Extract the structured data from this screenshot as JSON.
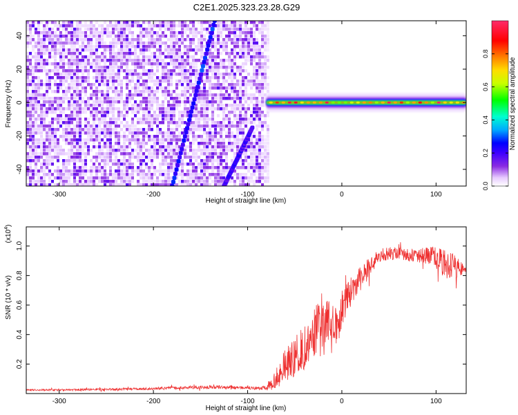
{
  "title": "C2E1.2025.323.23.28.G29",
  "chart_data": [
    {
      "type": "heatmap",
      "xlabel": "Height of straight line (km)",
      "ylabel": "Frequency (Hz)",
      "xlim": [
        -335,
        132
      ],
      "ylim": [
        -50,
        49
      ],
      "xticks": [
        -300,
        -200,
        -100,
        0,
        100
      ],
      "xtick_labels": [
        "-300",
        "-200",
        "-100",
        "0",
        "100"
      ],
      "yticks": [
        -40,
        -20,
        0,
        20,
        40
      ],
      "ytick_labels": [
        "-40",
        "-20",
        "0",
        "20",
        "40"
      ],
      "noise_region_x": [
        -335,
        -78
      ],
      "signal_band": {
        "x": [
          -80,
          132
        ],
        "frequency_hz": 0
      },
      "streaks": [
        {
          "x0": -180,
          "f0": -50,
          "x1": -135,
          "f1": 49,
          "intensity": 0.32
        },
        {
          "x0": -125,
          "f0": -50,
          "x1": -95,
          "f1": -15,
          "intensity": 0.25
        }
      ],
      "colorbar": {
        "label": "Normalized spectral amplitude",
        "range": [
          0,
          1
        ],
        "ticks": [
          0.0,
          0.2,
          0.4,
          0.6,
          0.8
        ],
        "tick_labels": [
          "0.0",
          "0.2",
          "0.4",
          "0.6",
          "0.8"
        ],
        "colormap": [
          "#ffffff",
          "#e8ccff",
          "#8a2be2",
          "#3f00ff",
          "#0000ff",
          "#00aaff",
          "#00ffd0",
          "#00ff00",
          "#c8ff00",
          "#ffdd00",
          "#ff8000",
          "#ff0000",
          "#ff2a6a"
        ]
      }
    },
    {
      "type": "line",
      "xlabel": "Height of straight line (km)",
      "ylabel": "SNR (10 * v/v)",
      "y_multiplier": "(x10",
      "y_multiplier_exp": "4",
      "y_multiplier_close": ")",
      "xlim": [
        -335,
        132
      ],
      "ylim": [
        0,
        1.13
      ],
      "xticks": [
        -300,
        -200,
        -100,
        0,
        100
      ],
      "xtick_labels": [
        "-300",
        "-200",
        "-100",
        "0",
        "100"
      ],
      "yticks": [
        0.2,
        0.4,
        0.6,
        0.8,
        1.0
      ],
      "ytick_labels": [
        "0.2",
        "0.4",
        "0.6",
        "0.8",
        "1.0"
      ],
      "series": [
        {
          "name": "SNR",
          "color": "#ee3030",
          "x": [
            -335,
            -300,
            -250,
            -200,
            -150,
            -110,
            -85,
            -75,
            -68,
            -60,
            -50,
            -40,
            -30,
            -20,
            -10,
            -3,
            0,
            10,
            20,
            30,
            40,
            50,
            60,
            70,
            80,
            90,
            100,
            110,
            120,
            132
          ],
          "y": [
            0.025,
            0.025,
            0.028,
            0.033,
            0.045,
            0.042,
            0.035,
            0.06,
            0.12,
            0.2,
            0.24,
            0.32,
            0.42,
            0.48,
            0.5,
            0.43,
            0.58,
            0.7,
            0.78,
            0.86,
            0.93,
            0.95,
            0.95,
            0.94,
            0.93,
            0.94,
            0.92,
            0.88,
            0.86,
            0.83
          ],
          "noise": [
            0.006,
            0.006,
            0.007,
            0.009,
            0.012,
            0.012,
            0.01,
            0.04,
            0.08,
            0.11,
            0.14,
            0.16,
            0.17,
            0.16,
            0.15,
            0.12,
            0.12,
            0.1,
            0.08,
            0.07,
            0.05,
            0.045,
            0.04,
            0.04,
            0.045,
            0.06,
            0.08,
            0.1,
            0.08,
            0.02
          ]
        }
      ]
    }
  ]
}
